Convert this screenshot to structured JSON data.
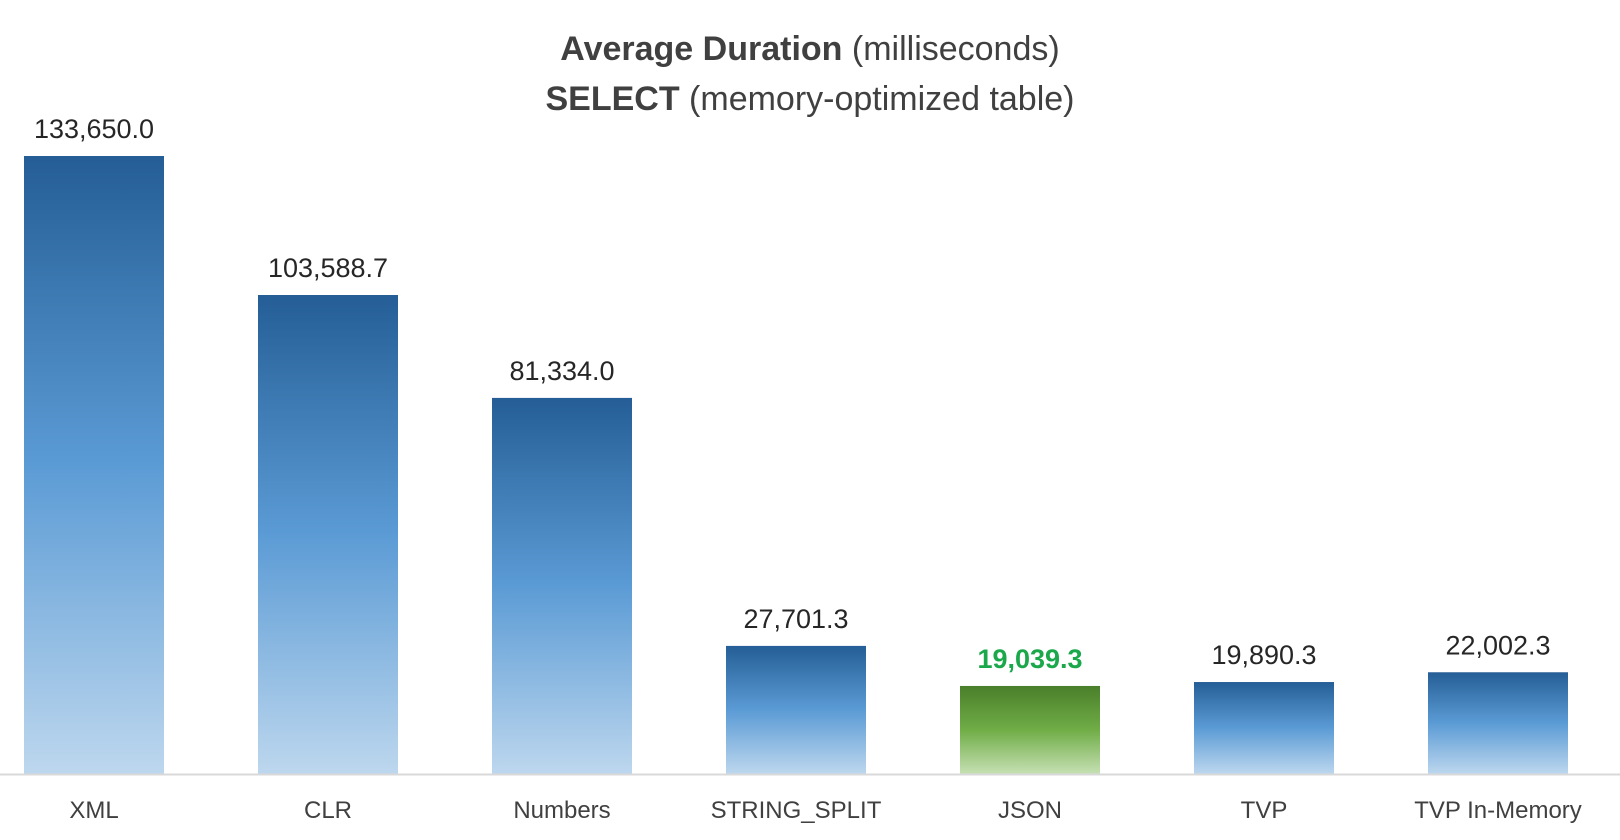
{
  "chart_data": {
    "type": "bar",
    "title_bold_1": "Average Duration",
    "title_rest_1": " (milliseconds)",
    "title_bold_2": "SELECT",
    "title_rest_2": " (memory-optimized table)",
    "categories": [
      "XML",
      "CLR",
      "Numbers",
      "STRING_SPLIT",
      "JSON",
      "TVP",
      "TVP In-Memory"
    ],
    "values": [
      133650.0,
      103588.7,
      81334.0,
      27701.3,
      19039.3,
      19890.3,
      22002.3
    ],
    "value_labels": [
      "133,650.0",
      "103,588.7",
      "81,334.0",
      "27,701.3",
      "19,039.3",
      "19,890.3",
      "22,002.3"
    ],
    "highlight_category": "JSON",
    "ylim": [
      0,
      133650
    ],
    "grid": false,
    "legend": "none",
    "colors": {
      "bar_top": "#255e96",
      "bar_bottom": "#bdd7ee",
      "highlight_top": "#4a7f2a",
      "highlight_bottom": "#c6e0b4",
      "highlight_label": "#1aa84b",
      "axis": "#d9d9d9"
    }
  }
}
